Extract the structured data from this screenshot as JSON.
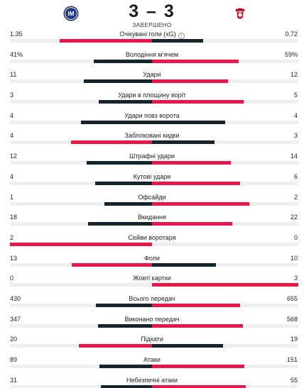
{
  "match": {
    "score": "3 – 3",
    "status": "ЗАВЕРШЕНО",
    "home_logo": "inter-crest-icon",
    "away_logo": "benfica-crest-icon"
  },
  "colors": {
    "red": "#e8174a",
    "dark": "#15232b",
    "track": "#efefef"
  },
  "stats": [
    {
      "label": "Очікувані голи (xG)",
      "home": "1.35",
      "away": "0.72",
      "h": 1.35,
      "a": 0.72,
      "info": true,
      "leader": "home"
    },
    {
      "label": "Володіння м'ячем",
      "home": "41%",
      "away": "59%",
      "h": 41,
      "a": 59,
      "leader": "away"
    },
    {
      "label": "Удари",
      "home": "11",
      "away": "12",
      "h": 11,
      "a": 12,
      "leader": "away"
    },
    {
      "label": "Удари в площину воріт",
      "home": "3",
      "away": "5",
      "h": 3,
      "a": 5,
      "leader": "away"
    },
    {
      "label": "Удари повз ворота",
      "home": "4",
      "away": "4",
      "h": 4,
      "a": 4,
      "leader": "none"
    },
    {
      "label": "Заблоковані кидки",
      "home": "4",
      "away": "3",
      "h": 4,
      "a": 3,
      "leader": "home"
    },
    {
      "label": "Штрафні удари",
      "home": "12",
      "away": "14",
      "h": 12,
      "a": 14,
      "leader": "away"
    },
    {
      "label": "Кутові удари",
      "home": "4",
      "away": "6",
      "h": 4,
      "a": 6,
      "leader": "away"
    },
    {
      "label": "Офсайди",
      "home": "1",
      "away": "2",
      "h": 1,
      "a": 2,
      "leader": "away"
    },
    {
      "label": "Вкидання",
      "home": "18",
      "away": "22",
      "h": 18,
      "a": 22,
      "leader": "away"
    },
    {
      "label": "Сейви воротаря",
      "home": "2",
      "away": "0",
      "h": 2,
      "a": 0,
      "leader": "home"
    },
    {
      "label": "Фоли",
      "home": "13",
      "away": "10",
      "h": 13,
      "a": 10,
      "leader": "home"
    },
    {
      "label": "Жовті картки",
      "home": "0",
      "away": "3",
      "h": 0,
      "a": 3,
      "leader": "away"
    },
    {
      "label": "Всього передач",
      "home": "430",
      "away": "655",
      "h": 430,
      "a": 655,
      "leader": "away"
    },
    {
      "label": "Виконано передач",
      "home": "347",
      "away": "568",
      "h": 347,
      "a": 568,
      "leader": "away"
    },
    {
      "label": "Підкати",
      "home": "20",
      "away": "19",
      "h": 20,
      "a": 19,
      "leader": "home"
    },
    {
      "label": "Атаки",
      "home": "89",
      "away": "151",
      "h": 89,
      "a": 151,
      "leader": "away"
    },
    {
      "label": "Небезпечні атаки",
      "home": "31",
      "away": "55",
      "h": 31,
      "a": 55,
      "leader": "away"
    }
  ]
}
